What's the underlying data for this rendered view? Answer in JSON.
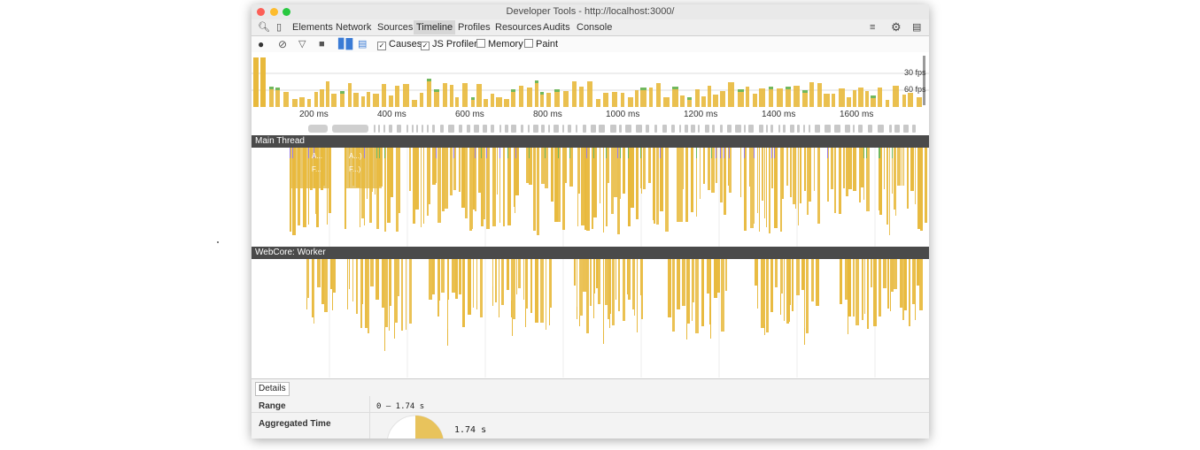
{
  "window": {
    "title": "Developer Tools - http://localhost:3000/"
  },
  "tabs": [
    {
      "label": "Elements"
    },
    {
      "label": "Network"
    },
    {
      "label": "Sources"
    },
    {
      "label": "Timeline",
      "active": true
    },
    {
      "label": "Profiles"
    },
    {
      "label": "Resources"
    },
    {
      "label": "Audits"
    },
    {
      "label": "Console"
    }
  ],
  "toolbar": {
    "causes_label": "Causes",
    "causes_checked": true,
    "js_profiler_label": "JS Profiler",
    "js_profiler_checked": true,
    "memory_label": "Memory",
    "memory_checked": false,
    "paint_label": "Paint",
    "paint_checked": false
  },
  "overview": {
    "fps_30_label": "30 fps",
    "fps_60_label": "60 fps"
  },
  "ruler": {
    "ticks": [
      "200 ms",
      "400 ms",
      "600 ms",
      "800 ms",
      "1000 ms",
      "1200 ms",
      "1400 ms",
      "1600 ms"
    ]
  },
  "tracks": {
    "main_thread_label": "Main Thread",
    "worker_label": "WebCore: Worker",
    "event_labels": [
      "A...",
      "F...",
      "A...)",
      "F...)"
    ]
  },
  "details": {
    "tab_label": "Details",
    "range_label": "Range",
    "range_value": "0 – 1.74 s",
    "aggregated_label": "Aggregated Time",
    "aggregated_value": "1.74 s"
  },
  "colors": {
    "scripting": "#e8b93c",
    "rendering": "#9b7fe6",
    "painting": "#71b85d",
    "header_bg": "#4a4a4a"
  }
}
